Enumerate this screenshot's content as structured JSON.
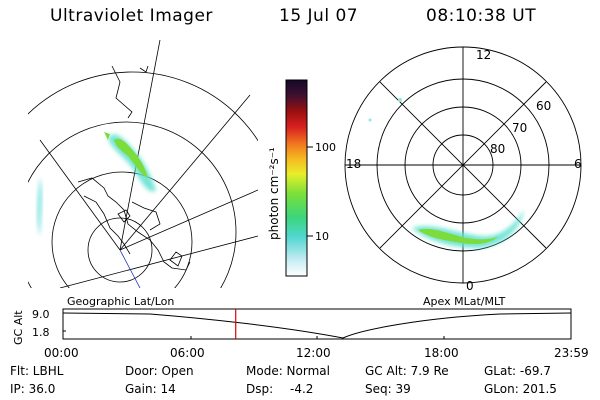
{
  "header": {
    "title": "Ultraviolet Imager",
    "date": "15 Jul 07",
    "time": "08:10:38 UT"
  },
  "colorbar": {
    "unit_label": "photon cm⁻²s⁻¹",
    "ticks": [
      "100",
      "10"
    ]
  },
  "polar": {
    "mlt_labels": {
      "top": "12",
      "left": "18",
      "right": "6",
      "bottom": "0"
    },
    "lat_labels": [
      "60",
      "70",
      "80"
    ]
  },
  "map_labels": {
    "left": "Geographic Lat/Lon",
    "right": "Apex MLat/MLT"
  },
  "altitude_plot": {
    "ylabel": "GC Alt",
    "yticks": [
      "9.0",
      "1.8"
    ],
    "xticks": [
      "00:00",
      "06:00",
      "12:00",
      "18:00",
      "23:59"
    ],
    "current_time_fraction": 0.34
  },
  "status": {
    "filter": "Flt: LBHL",
    "door": "Door: Open",
    "mode": "Mode: Normal",
    "gc_alt": "GC Alt: 7.9 Re",
    "glat": "GLat: -69.7",
    "ip": "IP: 36.0",
    "gain": "Gain: 14",
    "dsp_label": "Dsp:",
    "dsp_value": "-4.2",
    "seq": "Seq: 39",
    "glon": "GLon: 201.5"
  },
  "colors": {
    "marker": "#e00000",
    "aurora_core": "#7cdc3c",
    "aurora_edge": "#5ee0d0"
  }
}
